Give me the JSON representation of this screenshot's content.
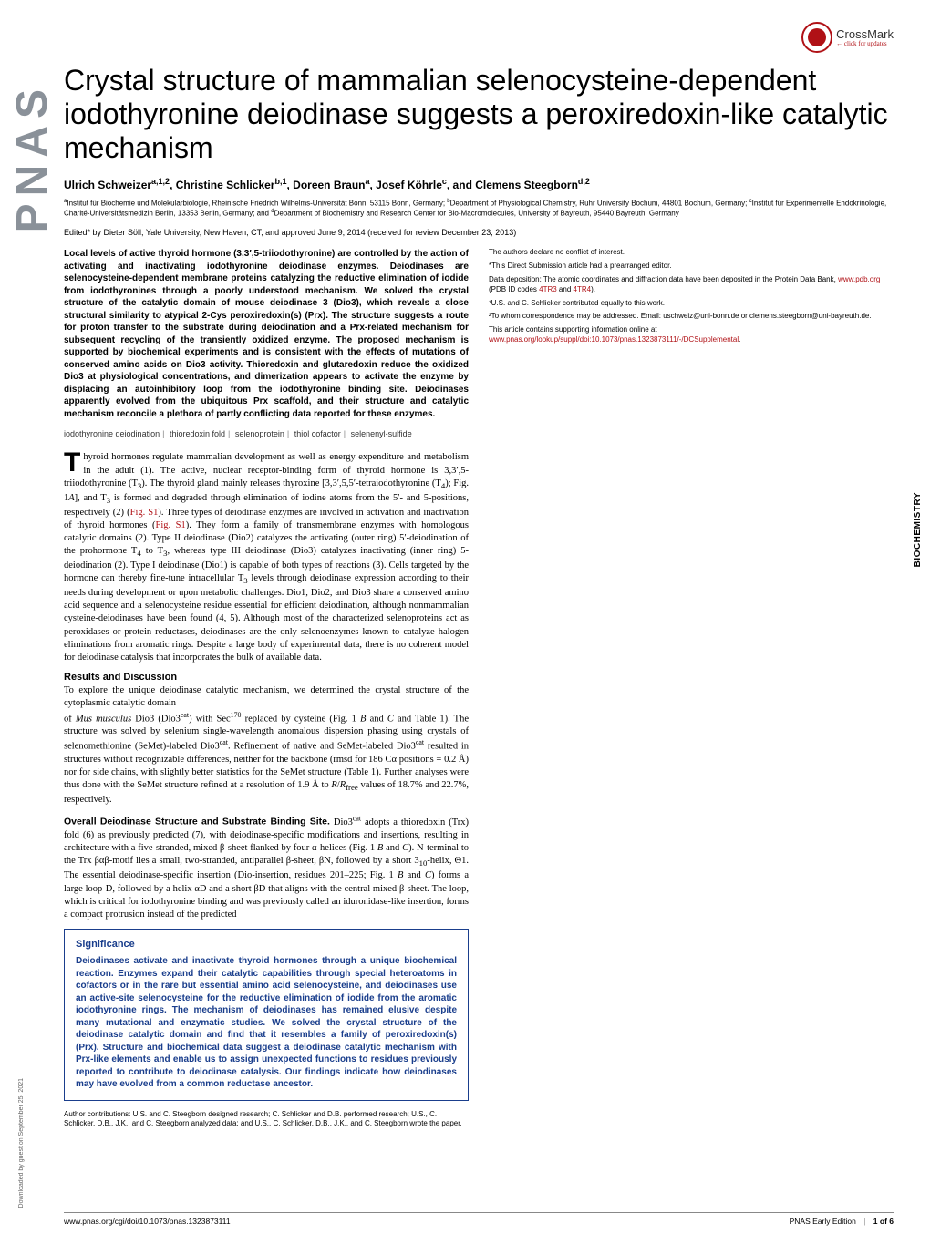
{
  "sidebar": {
    "pnas_logo_text": "PNAS",
    "category_label": "BIOCHEMISTRY",
    "download_note": "Downloaded by guest on September 25, 2021"
  },
  "crossmark": {
    "label": "CrossMark",
    "sublabel": "← click for updates"
  },
  "header": {
    "title": "Crystal structure of mammalian selenocysteine-dependent iodothyronine deiodinase suggests a peroxiredoxin-like catalytic mechanism",
    "authors_html": "Ulrich Schweizer<sup>a,1,2</sup>, Christine Schlicker<sup>b,1</sup>, Doreen Braun<sup>a</sup>, Josef Köhrle<sup>c</sup>, and Clemens Steegborn<sup>d,2</sup>",
    "affiliations_html": "<sup>a</sup>Institut für Biochemie und Molekularbiologie, Rheinische Friedrich Wilhelms-Universität Bonn, 53115 Bonn, Germany; <sup>b</sup>Department of Physiological Chemistry, Ruhr University Bochum, 44801 Bochum, Germany; <sup>c</sup>Institut für Experimentelle Endokrinologie, Charité-Universitätsmedizin Berlin, 13353 Berlin, Germany; and <sup>d</sup>Department of Biochemistry and Research Center for Bio-Macromolecules, University of Bayreuth, 95440 Bayreuth, Germany",
    "edited_line": "Edited* by Dieter Söll, Yale University, New Haven, CT, and approved June 9, 2014 (received for review December 23, 2013)"
  },
  "abstract": "Local levels of active thyroid hormone (3,3′,5-triiodothyronine) are controlled by the action of activating and inactivating iodothyronine deiodinase enzymes. Deiodinases are selenocysteine-dependent membrane proteins catalyzing the reductive elimination of iodide from iodothyronines through a poorly understood mechanism. We solved the crystal structure of the catalytic domain of mouse deiodinase 3 (Dio3), which reveals a close structural similarity to atypical 2-Cys peroxiredoxin(s) (Prx). The structure suggests a route for proton transfer to the substrate during deiodination and a Prx-related mechanism for subsequent recycling of the transiently oxidized enzyme. The proposed mechanism is supported by biochemical experiments and is consistent with the effects of mutations of conserved amino acids on Dio3 activity. Thioredoxin and glutaredoxin reduce the oxidized Dio3 at physiological concentrations, and dimerization appears to activate the enzyme by displacing an autoinhibitory loop from the iodothyronine binding site. Deiodinases apparently evolved from the ubiquitous Prx scaffold, and their structure and catalytic mechanism reconcile a plethora of partly conflicting data reported for these enzymes.",
  "keywords": [
    "iodothyronine deiodination",
    "thioredoxin fold",
    "selenoprotein",
    "thiol cofactor",
    "selenenyl-sulfide"
  ],
  "body": {
    "intro_p1_html": "<span style='font-weight:700'>T</span>hyroid hormones regulate mammalian development as well as energy expenditure and metabolism in the adult (1). The active, nuclear receptor-binding form of thyroid hormone is 3,3′,5-triiodothyronine (T<sub>3</sub>). The thyroid gland mainly releases thyroxine [3,3′,5,5′-tetraiodothyronine (T<sub>4</sub>); Fig. 1<i>A</i>], and T<sub>3</sub> is formed and degraded through elimination of iodine atoms from the 5′- and 5-positions, respectively (2) (<span class='link'>Fig. S1</span>). Three types of deiodinase enzymes are involved in activation and inactivation of thyroid hormones (<span class='link'>Fig. S1</span>). They form a family of transmembrane enzymes with homologous catalytic domains (2). Type II deiodinase (Dio2) catalyzes the activating (outer ring) 5′-deiodination of the prohormone T<sub>4</sub> to T<sub>3</sub>, whereas type III deiodinase (Dio3) catalyzes inactivating (inner ring) 5-deiodination (2). Type I deiodinase (Dio1) is capable of both types of reactions (3). Cells targeted by the hormone can thereby fine-tune intracellular T<sub>3</sub> levels through deiodinase expression according to their needs during development or upon metabolic challenges. Dio1, Dio2, and Dio3 share a conserved amino acid sequence and a selenocysteine residue essential for efficient deiodination, although nonmammalian cysteine-deiodinases have been found (4, 5). Although most of the characterized selenoproteins act as peroxidases or protein reductases, deiodinases are the only selenoenzymes known to catalyze halogen eliminations from aromatic rings. Despite a large body of experimental data, there is no coherent model for deiodinase catalysis that incorporates the bulk of available data.",
    "results_head": "Results and Discussion",
    "results_p1": "To explore the unique deiodinase catalytic mechanism, we determined the crystal structure of the cytoplasmic catalytic domain",
    "col2_p1_html": "of <i>Mus musculus</i> Dio3 (Dio3<sup>cat</sup>) with Sec<sup>170</sup> replaced by cysteine (Fig. 1 <i>B</i> and <i>C</i> and Table 1). The structure was solved by selenium single-wavelength anomalous dispersion phasing using crystals of selenomethionine (SeMet)-labeled Dio3<sup>cat</sup>. Refinement of native and SeMet-labeled Dio3<sup>cat</sup> resulted in structures without recognizable differences, neither for the backbone (rmsd for 186 Cα positions = 0.2 Å) nor for side chains, with slightly better statistics for the SeMet structure (Table 1). Further analyses were thus done with the SeMet structure refined at a resolution of 1.9 Å to <i>R</i>/<i>R</i><sub>free</sub> values of 18.7% and 22.7%, respectively.",
    "structure_head_html": "Overall Deiodinase Structure and Substrate Binding Site.",
    "col2_p2_html": "Dio3<sup>cat</sup> adopts a thioredoxin (Trx) fold (6) as previously predicted (7), with deiodinase-specific modifications and insertions, resulting in architecture with a five-stranded, mixed β-sheet flanked by four α-helices (Fig. 1 <i>B</i> and <i>C</i>). N-terminal to the Trx βαβ-motif lies a small, two-stranded, antiparallel β-sheet, βN, followed by a short 3<sub>10</sub>-helix, Θ1. The essential deiodinase-specific insertion (Dio-insertion, residues 201–225; Fig. 1 <i>B</i> and <i>C</i>) forms a large loop-D, followed by a helix αD and a short βD that aligns with the central mixed β-sheet. The loop, which is critical for iodothyronine binding and was previously called an iduronidase-like insertion, forms a compact protrusion instead of the predicted"
  },
  "significance": {
    "heading": "Significance",
    "body": "Deiodinases activate and inactivate thyroid hormones through a unique biochemical reaction. Enzymes expand their catalytic capabilities through special heteroatoms in cofactors or in the rare but essential amino acid selenocysteine, and deiodinases use an active-site selenocysteine for the reductive elimination of iodide from the aromatic iodothyronine rings. The mechanism of deiodinases has remained elusive despite many mutational and enzymatic studies. We solved the crystal structure of the deiodinase catalytic domain and find that it resembles a family of peroxiredoxin(s) (Prx). Structure and biochemical data suggest a deiodinase catalytic mechanism with Prx-like elements and enable us to assign unexpected functions to residues previously reported to contribute to deiodinase catalysis. Our findings indicate how deiodinases may have evolved from a common reductase ancestor."
  },
  "footnotes": {
    "author_contrib": "Author contributions: U.S. and C. Steegborn designed research; C. Schlicker and D.B. performed research; U.S., C. Schlicker, D.B., J.K., and C. Steegborn analyzed data; and U.S., C. Schlicker, D.B., J.K., and C. Steegborn wrote the paper.",
    "conflict": "The authors declare no conflict of interest.",
    "direct_sub": "*This Direct Submission article had a prearranged editor.",
    "data_dep_html": "Data deposition: The atomic coordinates and diffraction data have been deposited in the Protein Data Bank, <span class='link'>www.pdb.org</span> (PDB ID codes <span class='link'>4TR3</span> and <span class='link'>4TR4</span>).",
    "equal": "¹U.S. and C. Schlicker contributed equally to this work.",
    "correspond": "²To whom correspondence may be addressed. Email: uschweiz@uni-bonn.de or clemens.steegborn@uni-bayreuth.de.",
    "supp_html": "This article contains supporting information online at <span class='link'>www.pnas.org/lookup/suppl/doi:10.1073/pnas.1323873111/-/DCSupplemental</span>."
  },
  "footer": {
    "doi": "www.pnas.org/cgi/doi/10.1073/pnas.1323873111",
    "right_label": "PNAS Early Edition",
    "page_info": "1 of 6"
  },
  "colors": {
    "accent_red": "#b01116",
    "accent_blue": "#1a3e8c",
    "sidebar_gray": "#8a9199"
  }
}
